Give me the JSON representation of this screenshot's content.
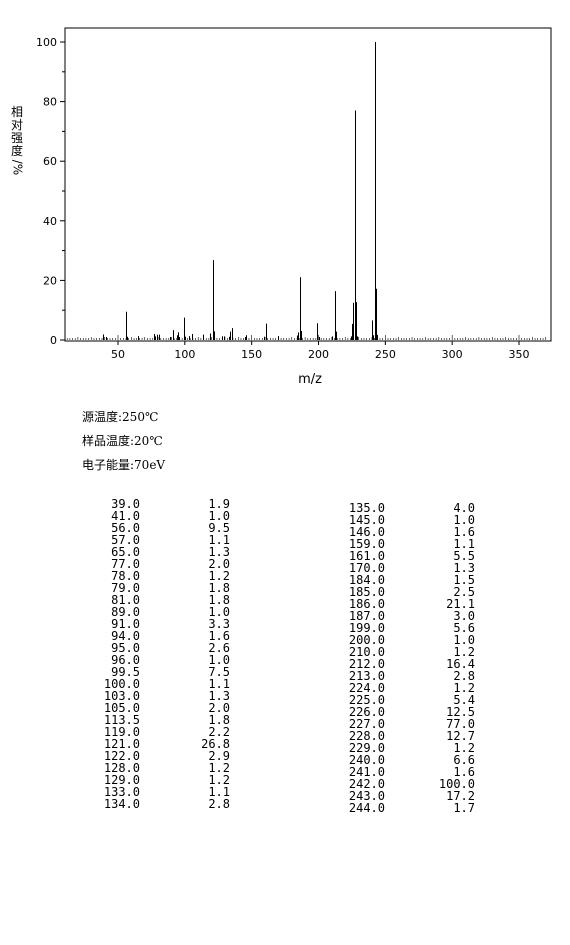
{
  "chart_data": {
    "type": "bar",
    "xlabel": "m/z",
    "ylabel": "相对强度/%",
    "xlim": [
      10,
      370
    ],
    "ylim": [
      0,
      105
    ],
    "x_ticks": [
      50,
      100,
      150,
      200,
      250,
      300,
      350
    ],
    "y_ticks": [
      0,
      20,
      40,
      60,
      80,
      100
    ],
    "grid": false,
    "peaks": [
      {
        "mz": 39.0,
        "abundance": 1.9
      },
      {
        "mz": 41.0,
        "abundance": 1.0
      },
      {
        "mz": 56.0,
        "abundance": 9.5
      },
      {
        "mz": 57.0,
        "abundance": 1.1
      },
      {
        "mz": 65.0,
        "abundance": 1.3
      },
      {
        "mz": 77.0,
        "abundance": 2.0
      },
      {
        "mz": 78.0,
        "abundance": 1.2
      },
      {
        "mz": 79.0,
        "abundance": 1.8
      },
      {
        "mz": 81.0,
        "abundance": 1.8
      },
      {
        "mz": 89.0,
        "abundance": 1.0
      },
      {
        "mz": 91.0,
        "abundance": 3.3
      },
      {
        "mz": 94.0,
        "abundance": 1.6
      },
      {
        "mz": 95.0,
        "abundance": 2.6
      },
      {
        "mz": 96.0,
        "abundance": 1.0
      },
      {
        "mz": 99.5,
        "abundance": 7.5
      },
      {
        "mz": 100.0,
        "abundance": 1.1
      },
      {
        "mz": 103.0,
        "abundance": 1.3
      },
      {
        "mz": 105.0,
        "abundance": 2.0
      },
      {
        "mz": 113.5,
        "abundance": 1.8
      },
      {
        "mz": 119.0,
        "abundance": 2.2
      },
      {
        "mz": 121.0,
        "abundance": 26.8
      },
      {
        "mz": 122.0,
        "abundance": 2.9
      },
      {
        "mz": 128.0,
        "abundance": 1.2
      },
      {
        "mz": 129.0,
        "abundance": 1.2
      },
      {
        "mz": 133.0,
        "abundance": 1.1
      },
      {
        "mz": 134.0,
        "abundance": 2.8
      },
      {
        "mz": 135.0,
        "abundance": 4.0
      },
      {
        "mz": 145.0,
        "abundance": 1.0
      },
      {
        "mz": 146.0,
        "abundance": 1.6
      },
      {
        "mz": 159.0,
        "abundance": 1.1
      },
      {
        "mz": 161.0,
        "abundance": 5.5
      },
      {
        "mz": 170.0,
        "abundance": 1.3
      },
      {
        "mz": 184.0,
        "abundance": 1.5
      },
      {
        "mz": 185.0,
        "abundance": 2.5
      },
      {
        "mz": 186.0,
        "abundance": 21.1
      },
      {
        "mz": 187.0,
        "abundance": 3.0
      },
      {
        "mz": 199.0,
        "abundance": 5.6
      },
      {
        "mz": 200.0,
        "abundance": 1.0
      },
      {
        "mz": 210.0,
        "abundance": 1.2
      },
      {
        "mz": 212.0,
        "abundance": 16.4
      },
      {
        "mz": 213.0,
        "abundance": 2.8
      },
      {
        "mz": 224.0,
        "abundance": 1.2
      },
      {
        "mz": 225.0,
        "abundance": 5.4
      },
      {
        "mz": 226.0,
        "abundance": 12.5
      },
      {
        "mz": 227.0,
        "abundance": 77.0
      },
      {
        "mz": 228.0,
        "abundance": 12.7
      },
      {
        "mz": 229.0,
        "abundance": 1.2
      },
      {
        "mz": 240.0,
        "abundance": 6.6
      },
      {
        "mz": 241.0,
        "abundance": 1.6
      },
      {
        "mz": 242.0,
        "abundance": 100.0
      },
      {
        "mz": 243.0,
        "abundance": 17.2
      },
      {
        "mz": 244.0,
        "abundance": 1.7
      }
    ]
  },
  "conditions": {
    "source_temp": "源温度:250℃",
    "sample_temp": "样品温度:20℃",
    "electron_energy": "电子能量:70eV"
  },
  "peak_table": {
    "left": [
      [
        "39.0",
        "1.9"
      ],
      [
        "41.0",
        "1.0"
      ],
      [
        "56.0",
        "9.5"
      ],
      [
        "57.0",
        "1.1"
      ],
      [
        "65.0",
        "1.3"
      ],
      [
        "77.0",
        "2.0"
      ],
      [
        "78.0",
        "1.2"
      ],
      [
        "79.0",
        "1.8"
      ],
      [
        "81.0",
        "1.8"
      ],
      [
        "89.0",
        "1.0"
      ],
      [
        "91.0",
        "3.3"
      ],
      [
        "94.0",
        "1.6"
      ],
      [
        "95.0",
        "2.6"
      ],
      [
        "96.0",
        "1.0"
      ],
      [
        "99.5",
        "7.5"
      ],
      [
        "100.0",
        "1.1"
      ],
      [
        "103.0",
        "1.3"
      ],
      [
        "105.0",
        "2.0"
      ],
      [
        "113.5",
        "1.8"
      ],
      [
        "119.0",
        "2.2"
      ],
      [
        "121.0",
        "26.8"
      ],
      [
        "122.0",
        "2.9"
      ],
      [
        "128.0",
        "1.2"
      ],
      [
        "129.0",
        "1.2"
      ],
      [
        "133.0",
        "1.1"
      ],
      [
        "134.0",
        "2.8"
      ]
    ],
    "right": [
      [
        "135.0",
        "4.0"
      ],
      [
        "145.0",
        "1.0"
      ],
      [
        "146.0",
        "1.6"
      ],
      [
        "159.0",
        "1.1"
      ],
      [
        "161.0",
        "5.5"
      ],
      [
        "170.0",
        "1.3"
      ],
      [
        "184.0",
        "1.5"
      ],
      [
        "185.0",
        "2.5"
      ],
      [
        "186.0",
        "21.1"
      ],
      [
        "187.0",
        "3.0"
      ],
      [
        "199.0",
        "5.6"
      ],
      [
        "200.0",
        "1.0"
      ],
      [
        "210.0",
        "1.2"
      ],
      [
        "212.0",
        "16.4"
      ],
      [
        "213.0",
        "2.8"
      ],
      [
        "224.0",
        "1.2"
      ],
      [
        "225.0",
        "5.4"
      ],
      [
        "226.0",
        "12.5"
      ],
      [
        "227.0",
        "77.0"
      ],
      [
        "228.0",
        "12.7"
      ],
      [
        "229.0",
        "1.2"
      ],
      [
        "240.0",
        "6.6"
      ],
      [
        "241.0",
        "1.6"
      ],
      [
        "242.0",
        "100.0"
      ],
      [
        "243.0",
        "17.2"
      ],
      [
        "244.0",
        "1.7"
      ]
    ]
  }
}
